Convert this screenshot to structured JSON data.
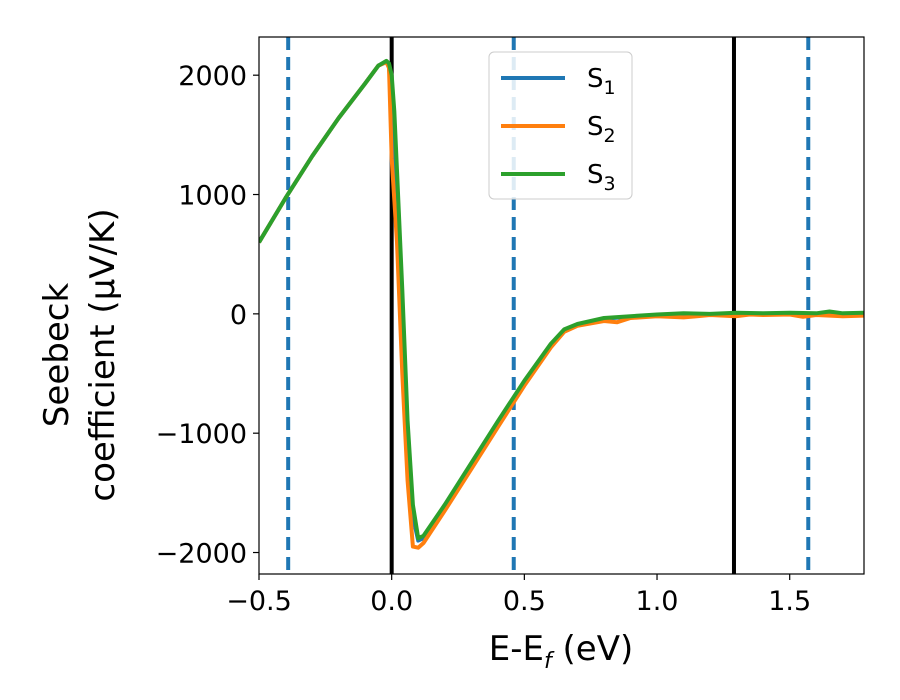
{
  "chart_data": {
    "type": "line",
    "xlabel": "E-E",
    "xlabel_sub": "f",
    "xlabel_unit": " (eV)",
    "ylabel_line1": "Seebeck",
    "ylabel_line2": "coefficient  (μV/K)",
    "xlim": [
      -0.5,
      1.78
    ],
    "ylim": [
      -2180,
      2320
    ],
    "xticks": [
      -0.5,
      0.0,
      0.5,
      1.0,
      1.5
    ],
    "xtick_labels": [
      "−0.5",
      "0.0",
      "0.5",
      "1.0",
      "1.5"
    ],
    "yticks": [
      -2000,
      -1000,
      0,
      1000,
      2000
    ],
    "ytick_labels": [
      "−2000",
      "−1000",
      "0",
      "1000",
      "2000"
    ],
    "grid": false,
    "legend_position": "top-center",
    "vlines_solid": [
      0.0,
      1.29
    ],
    "vlines_dashed": [
      -0.39,
      0.46,
      1.57
    ],
    "vline_solid_color": "#000000",
    "vline_dashed_color": "#1f77b4",
    "series": [
      {
        "name": "S",
        "sub": "1",
        "color": "#1f77b4",
        "points": [
          [
            -0.5,
            600
          ],
          [
            -0.4,
            970
          ],
          [
            -0.3,
            1320
          ],
          [
            -0.2,
            1640
          ],
          [
            -0.1,
            1930
          ],
          [
            -0.05,
            2080
          ],
          [
            -0.02,
            2110
          ],
          [
            -0.01,
            2080
          ],
          [
            0.0,
            1700
          ],
          [
            0.02,
            900
          ],
          [
            0.04,
            -100
          ],
          [
            0.06,
            -1100
          ],
          [
            0.08,
            -1700
          ],
          [
            0.1,
            -1900
          ],
          [
            0.12,
            -1880
          ],
          [
            0.2,
            -1620
          ],
          [
            0.3,
            -1270
          ],
          [
            0.4,
            -920
          ],
          [
            0.5,
            -570
          ],
          [
            0.6,
            -260
          ],
          [
            0.65,
            -140
          ],
          [
            0.7,
            -90
          ],
          [
            0.8,
            -40
          ],
          [
            0.9,
            -25
          ],
          [
            1.0,
            -12
          ],
          [
            1.1,
            -6
          ],
          [
            1.2,
            -3
          ],
          [
            1.3,
            0
          ],
          [
            1.4,
            0
          ],
          [
            1.5,
            0
          ],
          [
            1.6,
            0
          ],
          [
            1.78,
            0
          ]
        ]
      },
      {
        "name": "S",
        "sub": "2",
        "color": "#ff7f0e",
        "points": [
          [
            -0.5,
            600
          ],
          [
            -0.4,
            970
          ],
          [
            -0.3,
            1320
          ],
          [
            -0.2,
            1640
          ],
          [
            -0.1,
            1930
          ],
          [
            -0.05,
            2080
          ],
          [
            -0.02,
            2110
          ],
          [
            -0.01,
            2060
          ],
          [
            0.0,
            1300
          ],
          [
            0.02,
            600
          ],
          [
            0.04,
            -500
          ],
          [
            0.06,
            -1400
          ],
          [
            0.08,
            -1950
          ],
          [
            0.1,
            -1960
          ],
          [
            0.12,
            -1920
          ],
          [
            0.2,
            -1650
          ],
          [
            0.3,
            -1300
          ],
          [
            0.4,
            -950
          ],
          [
            0.5,
            -600
          ],
          [
            0.6,
            -280
          ],
          [
            0.65,
            -150
          ],
          [
            0.7,
            -100
          ],
          [
            0.8,
            -60
          ],
          [
            0.85,
            -70
          ],
          [
            0.9,
            -35
          ],
          [
            1.0,
            -20
          ],
          [
            1.1,
            -30
          ],
          [
            1.15,
            -20
          ],
          [
            1.2,
            -10
          ],
          [
            1.3,
            -20
          ],
          [
            1.35,
            -5
          ],
          [
            1.4,
            -10
          ],
          [
            1.5,
            -5
          ],
          [
            1.55,
            -25
          ],
          [
            1.6,
            -10
          ],
          [
            1.7,
            -20
          ],
          [
            1.78,
            -15
          ]
        ]
      },
      {
        "name": "S",
        "sub": "3",
        "color": "#2ca02c",
        "points": [
          [
            -0.5,
            600
          ],
          [
            -0.4,
            970
          ],
          [
            -0.3,
            1320
          ],
          [
            -0.2,
            1640
          ],
          [
            -0.1,
            1930
          ],
          [
            -0.05,
            2080
          ],
          [
            -0.02,
            2120
          ],
          [
            -0.01,
            2100
          ],
          [
            0.0,
            2000
          ],
          [
            0.01,
            1700
          ],
          [
            0.02,
            1200
          ],
          [
            0.04,
            200
          ],
          [
            0.06,
            -900
          ],
          [
            0.08,
            -1600
          ],
          [
            0.1,
            -1880
          ],
          [
            0.12,
            -1860
          ],
          [
            0.2,
            -1600
          ],
          [
            0.3,
            -1250
          ],
          [
            0.4,
            -900
          ],
          [
            0.5,
            -560
          ],
          [
            0.6,
            -250
          ],
          [
            0.65,
            -130
          ],
          [
            0.7,
            -85
          ],
          [
            0.8,
            -35
          ],
          [
            0.9,
            -20
          ],
          [
            1.0,
            -5
          ],
          [
            1.1,
            5
          ],
          [
            1.2,
            0
          ],
          [
            1.3,
            10
          ],
          [
            1.4,
            5
          ],
          [
            1.5,
            10
          ],
          [
            1.6,
            5
          ],
          [
            1.65,
            20
          ],
          [
            1.7,
            5
          ],
          [
            1.78,
            10
          ]
        ]
      }
    ]
  }
}
